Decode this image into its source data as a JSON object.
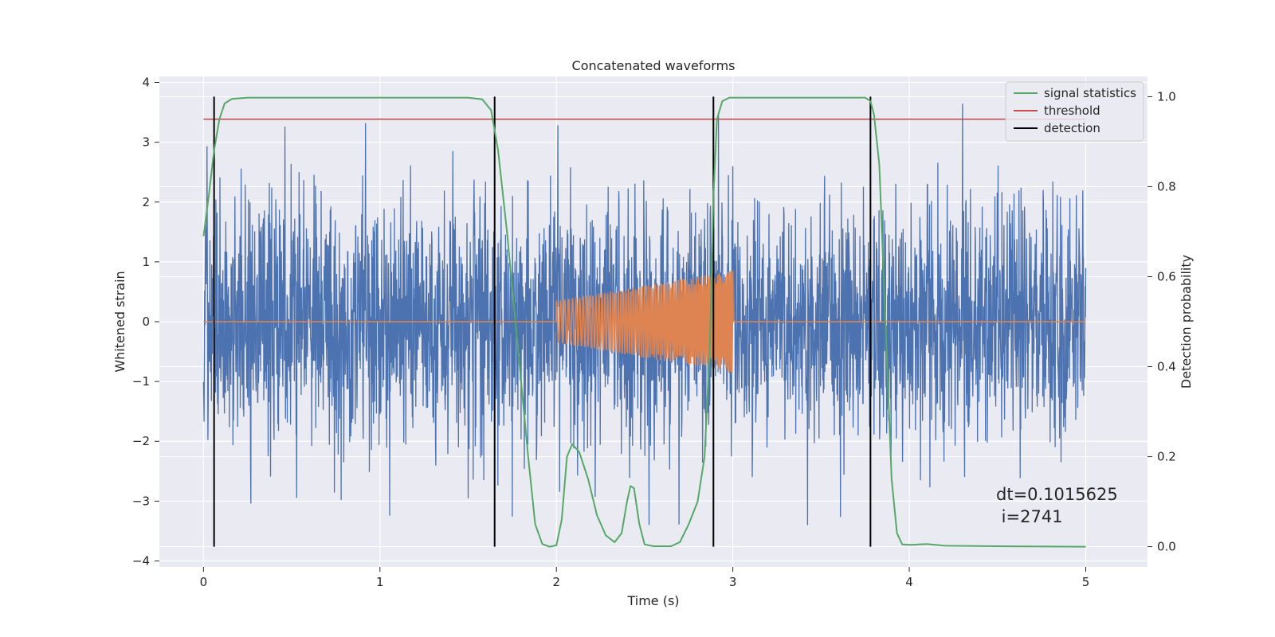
{
  "colors": {
    "axes_bg": "#EAEAF2",
    "grid": "#FFFFFF",
    "strain": "#4C72B0",
    "injection": "#DD8452",
    "signal_statistics": "#55A868",
    "threshold": "#C44E52",
    "detection": "#000000"
  },
  "chart_data": {
    "type": "line",
    "title": "Concatenated waveforms",
    "xlabel": "Time (s)",
    "ylabel": "Whitened strain",
    "y2label": "Detection probability",
    "xlim": [
      -0.25,
      5.35
    ],
    "ylim": [
      -4.1,
      4.1
    ],
    "y2lim": [
      -0.045,
      1.045
    ],
    "xticks": [
      "0",
      "1",
      "2",
      "3",
      "4",
      "5"
    ],
    "yticks": [
      "4",
      "3",
      "2",
      "1",
      "0",
      "−1",
      "−2",
      "−3",
      "−4"
    ],
    "y2ticks": [
      "1.0",
      "0.8",
      "0.6",
      "0.4",
      "0.2",
      "0.0"
    ],
    "grid": true,
    "legend_position": "top-right",
    "legend": [
      {
        "name": "signal statistics",
        "color": "#55A868"
      },
      {
        "name": "threshold",
        "color": "#C44E52"
      },
      {
        "name": "detection",
        "color": "#000000"
      }
    ],
    "series": [
      {
        "name": "whitened strain noise",
        "axis": "left",
        "x_range": [
          0,
          5
        ],
        "amplitude_std": 1.0,
        "min": -3.4,
        "max": 3.75
      },
      {
        "name": "injected waveform",
        "axis": "left",
        "x_range": [
          0,
          5
        ],
        "chirp_start": 2.0,
        "chirp_end": 3.0,
        "amplitude_start": 0.35,
        "amplitude_end": 0.85
      },
      {
        "name": "signal statistics",
        "axis": "right",
        "points": [
          [
            0.0,
            0.69
          ],
          [
            0.03,
            0.78
          ],
          [
            0.06,
            0.88
          ],
          [
            0.09,
            0.95
          ],
          [
            0.12,
            0.985
          ],
          [
            0.16,
            0.995
          ],
          [
            0.25,
            0.998
          ],
          [
            1.0,
            0.998
          ],
          [
            1.5,
            0.998
          ],
          [
            1.58,
            0.994
          ],
          [
            1.63,
            0.97
          ],
          [
            1.67,
            0.88
          ],
          [
            1.72,
            0.7
          ],
          [
            1.78,
            0.45
          ],
          [
            1.84,
            0.2
          ],
          [
            1.88,
            0.05
          ],
          [
            1.92,
            0.006
          ],
          [
            1.96,
            0.0
          ],
          [
            2.0,
            0.003
          ],
          [
            2.03,
            0.06
          ],
          [
            2.06,
            0.2
          ],
          [
            2.09,
            0.228
          ],
          [
            2.13,
            0.21
          ],
          [
            2.18,
            0.15
          ],
          [
            2.23,
            0.07
          ],
          [
            2.28,
            0.025
          ],
          [
            2.33,
            0.01
          ],
          [
            2.37,
            0.03
          ],
          [
            2.4,
            0.1
          ],
          [
            2.42,
            0.135
          ],
          [
            2.44,
            0.13
          ],
          [
            2.47,
            0.05
          ],
          [
            2.5,
            0.005
          ],
          [
            2.55,
            0.001
          ],
          [
            2.65,
            0.001
          ],
          [
            2.7,
            0.01
          ],
          [
            2.75,
            0.05
          ],
          [
            2.8,
            0.1
          ],
          [
            2.84,
            0.2
          ],
          [
            2.87,
            0.45
          ],
          [
            2.89,
            0.78
          ],
          [
            2.91,
            0.95
          ],
          [
            2.94,
            0.99
          ],
          [
            2.98,
            0.998
          ],
          [
            3.5,
            0.998
          ],
          [
            3.75,
            0.998
          ],
          [
            3.78,
            0.99
          ],
          [
            3.8,
            0.96
          ],
          [
            3.83,
            0.85
          ],
          [
            3.86,
            0.55
          ],
          [
            3.9,
            0.15
          ],
          [
            3.93,
            0.03
          ],
          [
            3.96,
            0.005
          ],
          [
            4.0,
            0.004
          ],
          [
            4.1,
            0.006
          ],
          [
            4.2,
            0.002
          ],
          [
            4.5,
            0.001
          ],
          [
            5.0,
            0.0
          ]
        ]
      },
      {
        "name": "threshold",
        "axis": "right",
        "x_range": [
          0,
          5
        ],
        "value": 0.95
      },
      {
        "name": "detection",
        "axis": "right",
        "x": [
          0.06,
          1.65,
          2.89,
          3.78
        ],
        "y_range": [
          0.0,
          1.0
        ]
      }
    ],
    "annotations": [
      "dt=0.1015625",
      " i=2741"
    ]
  }
}
